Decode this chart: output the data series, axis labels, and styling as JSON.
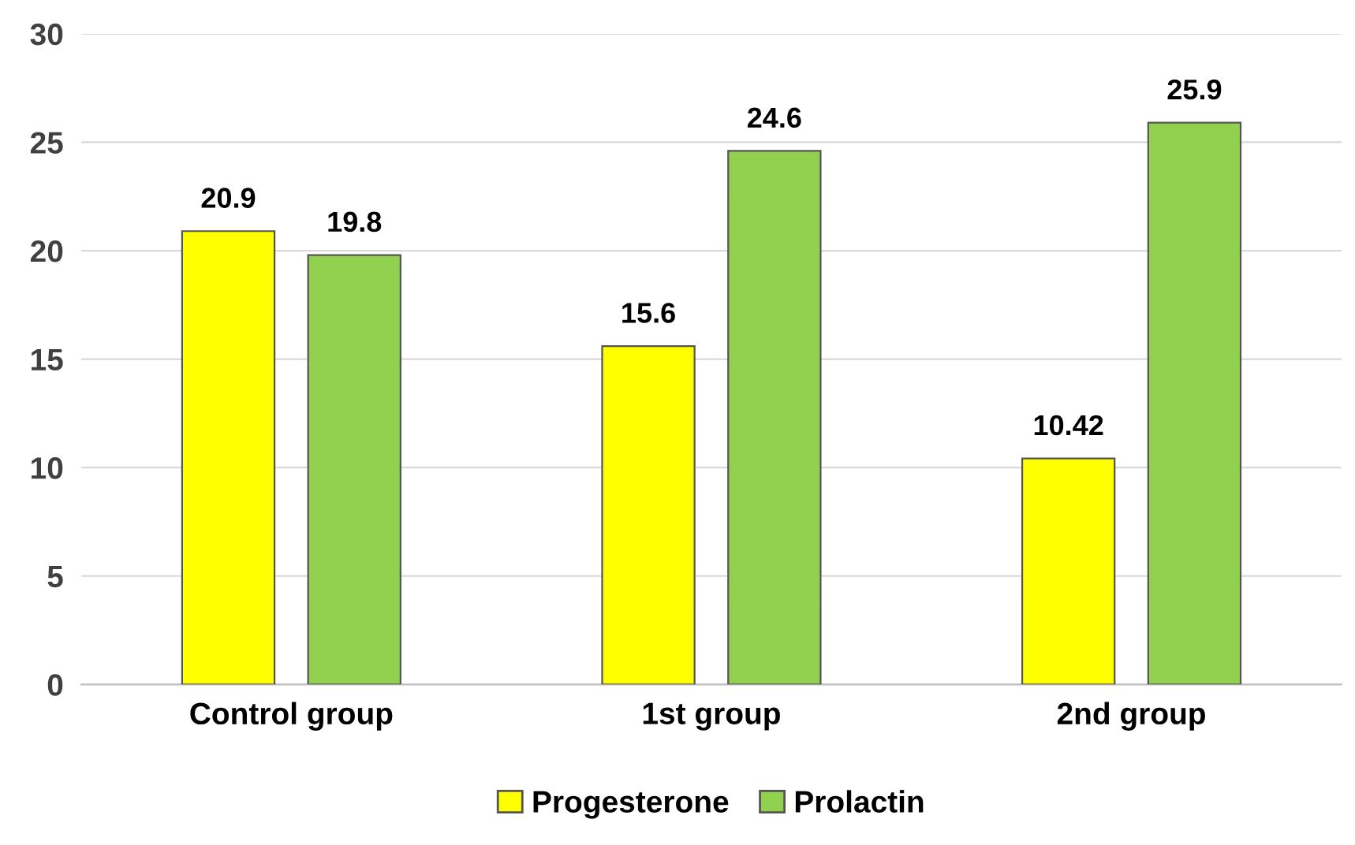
{
  "chart_data": {
    "type": "bar",
    "categories": [
      "Control group",
      "1st group",
      "2nd group"
    ],
    "series": [
      {
        "name": "Progesterone",
        "color": "#ffff00",
        "values": [
          20.9,
          15.6,
          10.42
        ]
      },
      {
        "name": "Prolactin",
        "color": "#92d050",
        "values": [
          19.8,
          24.6,
          25.9
        ]
      }
    ],
    "ylim": [
      0,
      30
    ],
    "yticks": [
      0,
      5,
      10,
      15,
      20,
      25,
      30
    ],
    "grid": "y",
    "legend": "bottom",
    "data_labels": true
  }
}
